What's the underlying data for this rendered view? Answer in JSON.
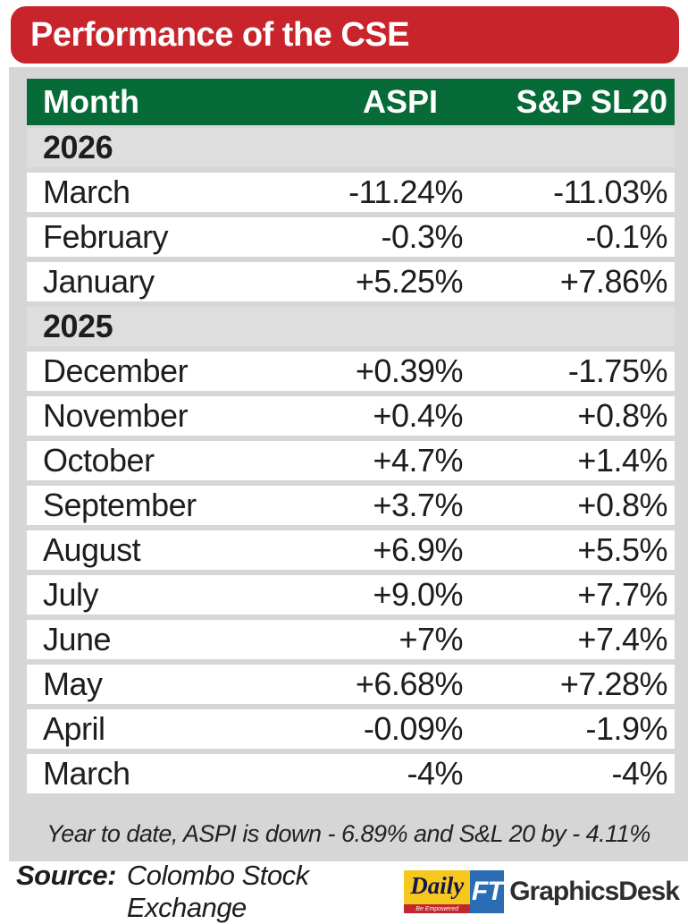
{
  "title": "Performance of the CSE",
  "table": {
    "header": {
      "month": "Month",
      "aspi": "ASPI",
      "sl20": "S&P SL20"
    },
    "rows": [
      {
        "type": "year",
        "month": "2026",
        "aspi": "",
        "sl20": ""
      },
      {
        "type": "month",
        "month": "March",
        "aspi": "-11.24%",
        "sl20": "-11.03%"
      },
      {
        "type": "month",
        "month": "February",
        "aspi": "-0.3%",
        "sl20": "-0.1%"
      },
      {
        "type": "month",
        "month": "January",
        "aspi": "+5.25%",
        "sl20": "+7.86%"
      },
      {
        "type": "year",
        "month": "2025",
        "aspi": "",
        "sl20": ""
      },
      {
        "type": "month",
        "month": "December",
        "aspi": "+0.39%",
        "sl20": "-1.75%"
      },
      {
        "type": "month",
        "month": "November",
        "aspi": "+0.4%",
        "sl20": "+0.8%"
      },
      {
        "type": "month",
        "month": "October",
        "aspi": "+4.7%",
        "sl20": "+1.4%"
      },
      {
        "type": "month",
        "month": "September",
        "aspi": "+3.7%",
        "sl20": "+0.8%"
      },
      {
        "type": "month",
        "month": "August",
        "aspi": "+6.9%",
        "sl20": "+5.5%"
      },
      {
        "type": "month",
        "month": "July",
        "aspi": "+9.0%",
        "sl20": "+7.7%"
      },
      {
        "type": "month",
        "month": "June",
        "aspi": "+7%",
        "sl20": "+7.4%"
      },
      {
        "type": "month",
        "month": "May",
        "aspi": "+6.68%",
        "sl20": "+7.28%"
      },
      {
        "type": "month",
        "month": "April",
        "aspi": "-0.09%",
        "sl20": "-1.9%"
      },
      {
        "type": "month",
        "month": "March",
        "aspi": "-4%",
        "sl20": "-4%"
      }
    ]
  },
  "note": "Year to date, ASPI is down - 6.89% and S&L 20 by - 4.11%",
  "source": {
    "label": "Source:",
    "value": "Colombo Stock Exchange"
  },
  "logo": {
    "daily": "Daily",
    "ft": "FT",
    "tagline": "Be Empowered",
    "brand": "GraphicsDesk"
  },
  "colors": {
    "accent_red": "#c8242b",
    "header_green": "#076b38",
    "panel_gray": "#d6d6d6",
    "year_row_gray": "#dedede",
    "logo_blue": "#2a6db5",
    "logo_yellow": "#f6c71c",
    "logo_strip_red": "#c2272d"
  },
  "chart_data": {
    "type": "table",
    "title": "Performance of the CSE",
    "columns": [
      "Month",
      "ASPI",
      "S&P SL20"
    ],
    "groups": [
      {
        "year": 2026,
        "rows": [
          {
            "month": "March",
            "aspi_pct": -11.24,
            "sp_sl20_pct": -11.03
          },
          {
            "month": "February",
            "aspi_pct": -0.3,
            "sp_sl20_pct": -0.1
          },
          {
            "month": "January",
            "aspi_pct": 5.25,
            "sp_sl20_pct": 7.86
          }
        ]
      },
      {
        "year": 2025,
        "rows": [
          {
            "month": "December",
            "aspi_pct": 0.39,
            "sp_sl20_pct": -1.75
          },
          {
            "month": "November",
            "aspi_pct": 0.4,
            "sp_sl20_pct": 0.8
          },
          {
            "month": "October",
            "aspi_pct": 4.7,
            "sp_sl20_pct": 1.4
          },
          {
            "month": "September",
            "aspi_pct": 3.7,
            "sp_sl20_pct": 0.8
          },
          {
            "month": "August",
            "aspi_pct": 6.9,
            "sp_sl20_pct": 5.5
          },
          {
            "month": "July",
            "aspi_pct": 9.0,
            "sp_sl20_pct": 7.7
          },
          {
            "month": "June",
            "aspi_pct": 7,
            "sp_sl20_pct": 7.4
          },
          {
            "month": "May",
            "aspi_pct": 6.68,
            "sp_sl20_pct": 7.28
          },
          {
            "month": "April",
            "aspi_pct": -0.09,
            "sp_sl20_pct": -1.9
          },
          {
            "month": "March",
            "aspi_pct": -4,
            "sp_sl20_pct": -4
          }
        ]
      }
    ],
    "note": "Year to date, ASPI is down - 6.89% and S&L 20 by - 4.11%",
    "source": "Colombo Stock Exchange"
  }
}
